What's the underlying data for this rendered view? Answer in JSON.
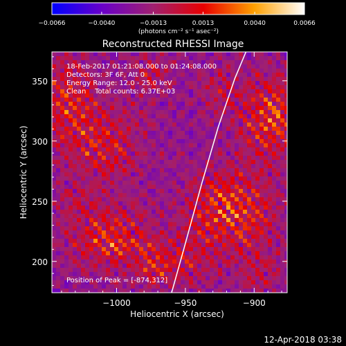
{
  "chart_data": {
    "type": "heatmap",
    "title": "Reconstructed RHESSI Image",
    "xlabel": "Heliocentric X (arcsec)",
    "ylabel": "Heliocentric Y (arcsec)",
    "xlim": [
      -1047,
      -876
    ],
    "ylim": [
      174,
      374
    ],
    "x_ticks": [
      {
        "value": -1000,
        "label": "−1000"
      },
      {
        "value": -950,
        "label": "−950"
      },
      {
        "value": -900,
        "label": "−900"
      }
    ],
    "y_ticks": [
      {
        "value": 200,
        "label": "200"
      },
      {
        "value": 250,
        "label": "250"
      },
      {
        "value": 300,
        "label": "300"
      },
      {
        "value": 350,
        "label": "350"
      }
    ],
    "colorbar": {
      "range": [
        -0.0066,
        0.0066
      ],
      "ticks": [
        {
          "value": -0.0066,
          "label": "−0.0066"
        },
        {
          "value": -0.004,
          "label": "−0.0040"
        },
        {
          "value": -0.0013,
          "label": "−0.0013"
        },
        {
          "value": 0.0013,
          "label": "0.0013"
        },
        {
          "value": 0.004,
          "label": "0.0040"
        },
        {
          "value": 0.0066,
          "label": "0.0066"
        }
      ],
      "unit_label": "(photons cm⁻² s⁻¹ asec⁻²)",
      "colors": [
        "#0000ff",
        "#6a00c8",
        "#a02070",
        "#e80000",
        "#ffa000",
        "#ffffff"
      ]
    },
    "annotations": [
      "18-Feb-2017 01:21:08.000 to 01:24:08.000",
      "Detectors: 3F 6F, Att 0",
      "Energy Range: 12.0 - 25.0 keV",
      "Clean    Total counts: 6.37E+03",
      "Position of Peak = [-874,312]"
    ],
    "peak": {
      "x": -874,
      "y": 312
    },
    "limb_curve": [
      {
        "x": -960,
        "y": 174
      },
      {
        "x": -950,
        "y": 215
      },
      {
        "x": -938,
        "y": 265
      },
      {
        "x": -926,
        "y": 312
      },
      {
        "x": -914,
        "y": 352
      },
      {
        "x": -906,
        "y": 374
      }
    ],
    "hot_regions": [
      {
        "x": -1038,
        "y": 335,
        "rx": 22,
        "ry": 40,
        "value": 0.0045
      },
      {
        "x": -1008,
        "y": 296,
        "rx": 28,
        "ry": 34,
        "value": 0.0042
      },
      {
        "x": -975,
        "y": 356,
        "rx": 18,
        "ry": 18,
        "value": 0.003
      },
      {
        "x": -1030,
        "y": 248,
        "rx": 16,
        "ry": 14,
        "value": 0.002
      },
      {
        "x": -1003,
        "y": 218,
        "rx": 30,
        "ry": 26,
        "value": 0.0055
      },
      {
        "x": -972,
        "y": 196,
        "rx": 14,
        "ry": 16,
        "value": 0.0038
      },
      {
        "x": -928,
        "y": 245,
        "rx": 24,
        "ry": 32,
        "value": 0.004
      },
      {
        "x": -947,
        "y": 200,
        "rx": 18,
        "ry": 24,
        "value": 0.003
      },
      {
        "x": -887,
        "y": 320,
        "rx": 22,
        "ry": 34,
        "value": 0.0062
      },
      {
        "x": -905,
        "y": 238,
        "rx": 26,
        "ry": 38,
        "value": 0.0038
      },
      {
        "x": -895,
        "y": 190,
        "rx": 18,
        "ry": 18,
        "value": 0.0022
      },
      {
        "x": -925,
        "y": 342,
        "rx": 16,
        "ry": 24,
        "value": 0.0028
      }
    ]
  },
  "footer": {
    "timestamp": "12-Apr-2018 03:38"
  }
}
